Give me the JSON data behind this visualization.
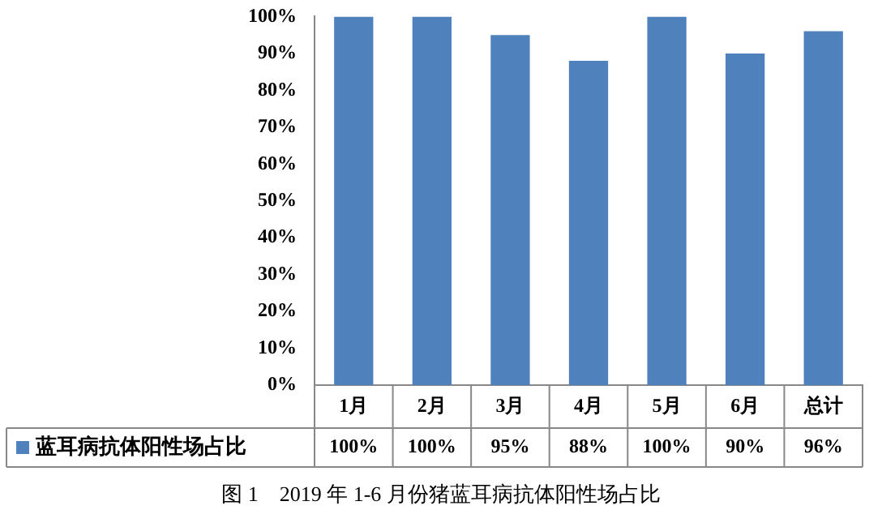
{
  "chart_data": {
    "type": "bar",
    "categories": [
      "1月",
      "2月",
      "3月",
      "4月",
      "5月",
      "6月",
      "总计"
    ],
    "series": [
      {
        "name": "蓝耳病抗体阳性场占比",
        "color": "#4f81bd",
        "values": [
          100,
          100,
          95,
          88,
          100,
          90,
          96
        ]
      }
    ],
    "ylim": [
      0,
      100
    ],
    "yticks": [
      {
        "value": 0,
        "label": "0%"
      },
      {
        "value": 10,
        "label": "10%"
      },
      {
        "value": 20,
        "label": "20%"
      },
      {
        "value": 30,
        "label": "30%"
      },
      {
        "value": 40,
        "label": "40%"
      },
      {
        "value": 50,
        "label": "50%"
      },
      {
        "value": 60,
        "label": "60%"
      },
      {
        "value": 70,
        "label": "70%"
      },
      {
        "value": 80,
        "label": "80%"
      },
      {
        "value": 90,
        "label": "90%"
      },
      {
        "value": 100,
        "label": "100%"
      }
    ],
    "value_labels": [
      "100%",
      "100%",
      "95%",
      "88%",
      "100%",
      "90%",
      "96%"
    ],
    "grid": false,
    "legend": "bottom",
    "annotations": [
      "图 1　2019 年 1-6 月份猪蓝耳病抗体阳性场占比"
    ]
  }
}
